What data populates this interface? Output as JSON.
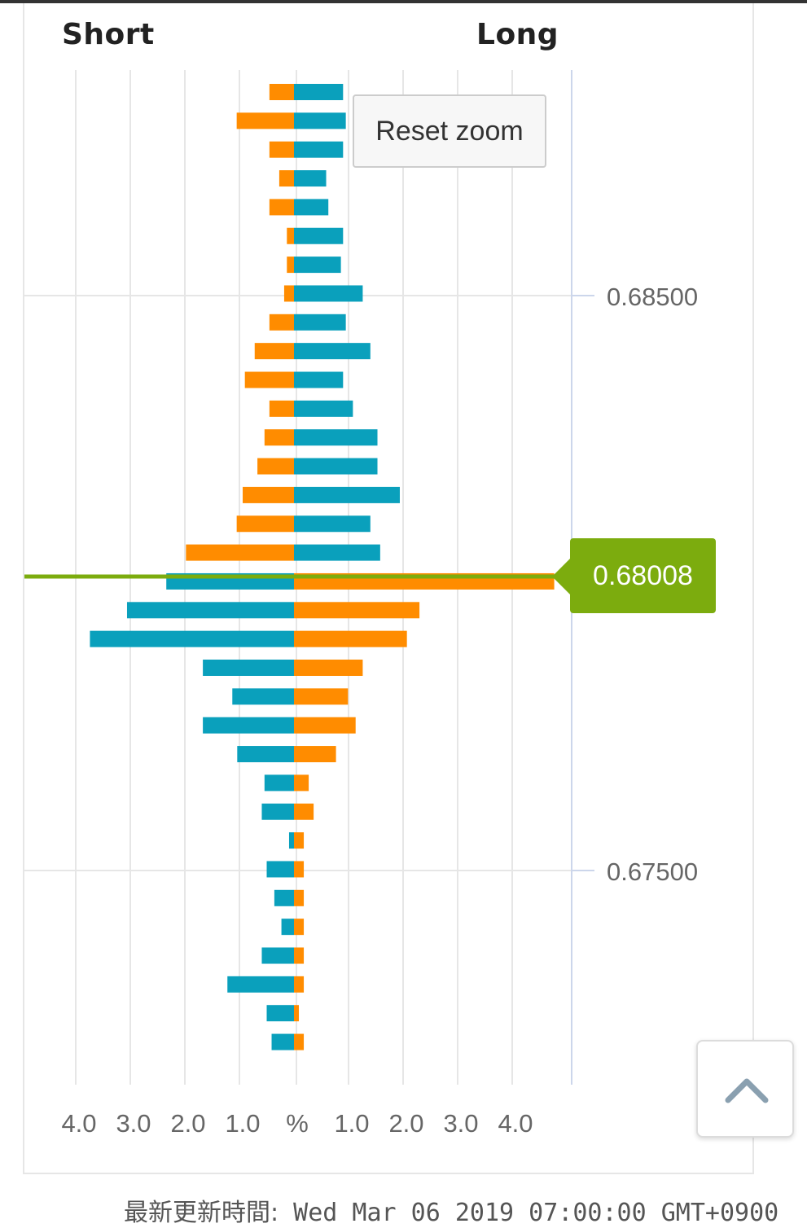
{
  "header": {
    "short_label": "Short",
    "long_label": "Long"
  },
  "reset_zoom_label": "Reset zoom",
  "current_price_label": "0.68008",
  "footer": {
    "label": "最新更新時間:",
    "timestamp": "Wed Mar 06 2019 07:00:00 GMT+0900"
  },
  "colors": {
    "blue": "#0aa0bc",
    "orange": "#ff8c00",
    "price_line": "#7cac0e",
    "grid": "#e6e6e6",
    "axis": "#ccd6eb"
  },
  "icons": {
    "scroll_top": "chevron-up-icon"
  },
  "chart_data": {
    "type": "bar",
    "orientation": "horizontal",
    "x_tick_labels": [
      "4.0",
      "3.0",
      "2.0",
      "1.0",
      "%",
      "1.0",
      "2.0",
      "3.0",
      "4.0"
    ],
    "y_tick_labels": [
      "0.68500",
      "0.67500"
    ],
    "xlim": [
      -4.5,
      5.0
    ],
    "y_ticks": [
      0.685,
      0.675
    ],
    "current_price": 0.68008,
    "price_levels": [
      0.6889,
      0.6884,
      0.6879,
      0.6874,
      0.6869,
      0.6864,
      0.6859,
      0.6854,
      0.6849,
      0.6844,
      0.6839,
      0.6834,
      0.6829,
      0.6824,
      0.6819,
      0.6814,
      0.6809,
      0.6804,
      0.6799,
      0.6794,
      0.6789,
      0.6784,
      0.6779,
      0.6774,
      0.6769,
      0.6764,
      0.6759,
      0.6754,
      0.6749,
      0.6744,
      0.6739,
      0.6734,
      0.6729,
      0.6724
    ],
    "series": [
      {
        "side": "short",
        "color": "orange",
        "values": [
          0.45,
          1.05,
          0.45,
          0.27,
          0.45,
          0.13,
          0.13,
          0.18,
          0.45,
          0.72,
          0.9,
          0.45,
          0.54,
          0.67,
          0.94,
          1.05,
          1.98,
          0,
          0,
          0,
          0,
          0,
          0,
          0,
          0,
          0,
          0,
          0,
          0,
          0,
          0,
          0,
          0,
          0
        ]
      },
      {
        "side": "long",
        "color": "blue",
        "values": [
          0.9,
          0.95,
          0.9,
          0.59,
          0.63,
          0.9,
          0.86,
          1.26,
          0.95,
          1.4,
          0.9,
          1.08,
          1.53,
          1.53,
          1.94,
          1.4,
          1.58,
          0,
          0,
          0,
          0,
          0,
          0,
          0,
          0,
          0,
          0,
          0,
          0,
          0,
          0,
          0,
          0,
          0
        ]
      },
      {
        "side": "short",
        "color": "blue",
        "values": [
          0,
          0,
          0,
          0,
          0,
          0,
          0,
          0,
          0,
          0,
          0,
          0,
          0,
          0,
          0,
          0,
          0,
          2.34,
          3.06,
          3.74,
          1.67,
          1.13,
          1.67,
          1.04,
          0.54,
          0.59,
          0.09,
          0.5,
          0.36,
          0.23,
          0.59,
          1.22,
          0.5,
          0.41
        ]
      },
      {
        "side": "long",
        "color": "orange",
        "values": [
          0,
          0,
          0,
          0,
          0,
          0,
          0,
          0,
          0,
          0,
          0,
          0,
          0,
          0,
          0,
          0,
          0,
          4.77,
          2.3,
          2.07,
          1.26,
          0.99,
          1.13,
          0.77,
          0.27,
          0.36,
          0.18,
          0.18,
          0.18,
          0.18,
          0.18,
          0.18,
          0.09,
          0.18
        ]
      }
    ]
  }
}
